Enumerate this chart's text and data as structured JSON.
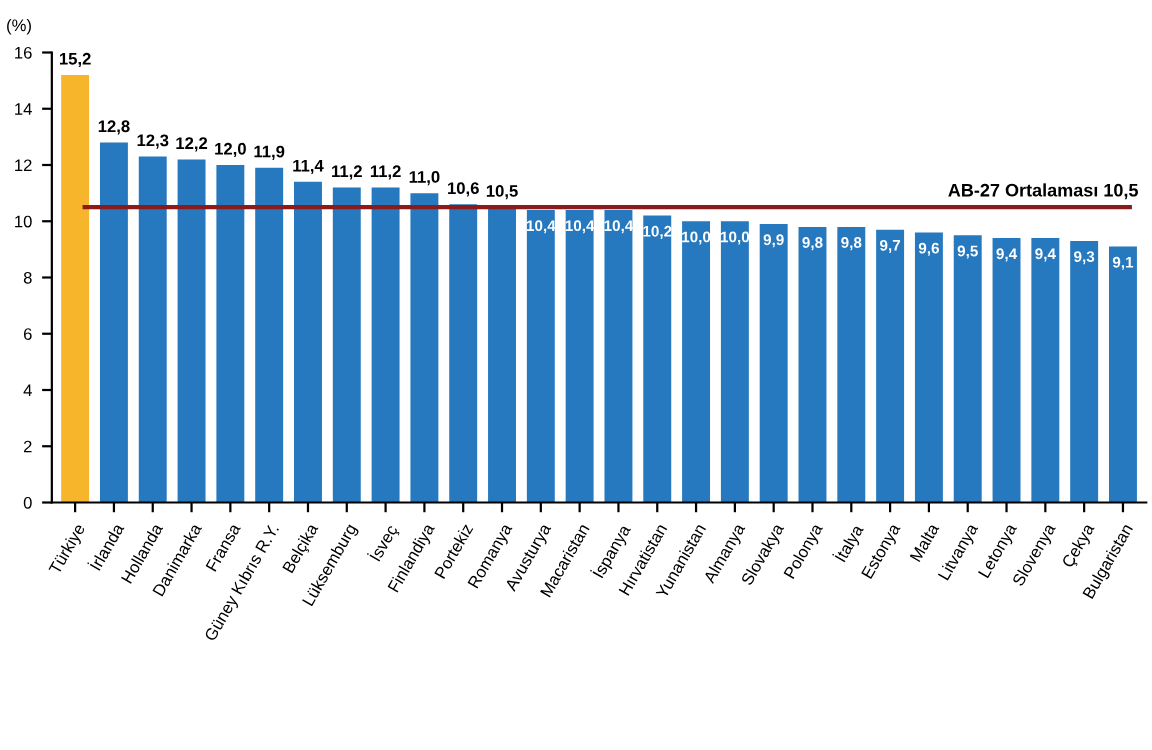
{
  "chart_data": {
    "type": "bar",
    "ylabel": "(%)",
    "categories": [
      "Türkiye",
      "İrlanda",
      "Hollanda",
      "Danimarka",
      "Fransa",
      "Güney Kıbrıs R.Y.",
      "Belçika",
      "Lüksemburg",
      "İsveç",
      "Finlandiya",
      "Portekiz",
      "Romanya",
      "Avusturya",
      "Macaristan",
      "İspanya",
      "Hırvatistan",
      "Yunanistan",
      "Almanya",
      "Slovakya",
      "Polonya",
      "İtalya",
      "Estonya",
      "Malta",
      "Litvanya",
      "Letonya",
      "Slovenya",
      "Çekya",
      "Bulgaristan"
    ],
    "values": [
      15.2,
      12.8,
      12.3,
      12.2,
      12.0,
      11.9,
      11.4,
      11.2,
      11.2,
      11.0,
      10.6,
      10.5,
      10.4,
      10.4,
      10.4,
      10.2,
      10.0,
      10.0,
      9.9,
      9.8,
      9.8,
      9.7,
      9.6,
      9.5,
      9.4,
      9.4,
      9.3,
      9.1
    ],
    "value_labels": [
      "15,2",
      "12,8",
      "12,3",
      "12,2",
      "12,0",
      "11,9",
      "11,4",
      "11,2",
      "11,2",
      "11,0",
      "10,6",
      "10,5",
      "10,4",
      "10,4",
      "10,4",
      "10,2",
      "10,0",
      "10,0",
      "9,9",
      "9,8",
      "9,8",
      "9,7",
      "9,6",
      "9,5",
      "9,4",
      "9,4",
      "9,3",
      "9,1"
    ],
    "colors": [
      "#f7b52c",
      "#2679be",
      "#2679be",
      "#2679be",
      "#2679be",
      "#2679be",
      "#2679be",
      "#2679be",
      "#2679be",
      "#2679be",
      "#2679be",
      "#2679be",
      "#2679be",
      "#2679be",
      "#2679be",
      "#2679be",
      "#2679be",
      "#2679be",
      "#2679be",
      "#2679be",
      "#2679be",
      "#2679be",
      "#2679be",
      "#2679be",
      "#2679be",
      "#2679be",
      "#2679be",
      "#2679be"
    ],
    "ylim": [
      0,
      16
    ],
    "yticks": [
      0,
      2,
      4,
      6,
      8,
      10,
      12,
      14,
      16
    ],
    "grid": false,
    "legend": false,
    "ref_lines": [
      {
        "axis": "y",
        "value": 10.5,
        "label": "AB-27 Ortalaması 10,5",
        "color": "#8b1a1a"
      }
    ]
  }
}
